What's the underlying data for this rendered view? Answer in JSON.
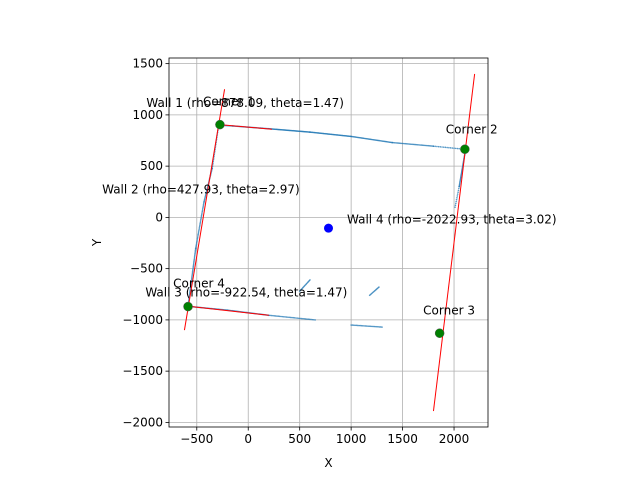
{
  "chart_data": {
    "type": "scatter",
    "title": "",
    "xlabel": "X",
    "ylabel": "Y",
    "xlim": [
      -770,
      2330
    ],
    "ylim": [
      -2045,
      1555
    ],
    "grid": true,
    "aspect": "equal",
    "xticks": [
      -500,
      0,
      500,
      1000,
      1500,
      2000
    ],
    "yticks": [
      -2000,
      -1500,
      -1000,
      -500,
      0,
      500,
      1000,
      1500
    ],
    "xtick_labels": [
      "−500",
      "0",
      "500",
      "1000",
      "1500",
      "2000"
    ],
    "ytick_labels": [
      "−2000",
      "−1500",
      "−1000",
      "−500",
      "0",
      "500",
      "1000",
      "1500"
    ],
    "colors": {
      "scan_points": "#1f77b4",
      "wall_lines": "#ff0000",
      "corners": "#008000",
      "centroid": "#0000ff"
    },
    "scan_point_segments": [
      {
        "from": [
          -280,
          900
        ],
        "to": [
          -150,
          892
        ],
        "n": 14
      },
      {
        "from": [
          -150,
          892
        ],
        "to": [
          200,
          865
        ],
        "n": 40
      },
      {
        "from": [
          200,
          865
        ],
        "to": [
          600,
          832
        ],
        "n": 60
      },
      {
        "from": [
          600,
          832
        ],
        "to": [
          1000,
          790
        ],
        "n": 55
      },
      {
        "from": [
          1000,
          790
        ],
        "to": [
          1400,
          730
        ],
        "n": 45
      },
      {
        "from": [
          1400,
          730
        ],
        "to": [
          1800,
          695
        ],
        "n": 35
      },
      {
        "from": [
          1800,
          695
        ],
        "to": [
          2050,
          670
        ],
        "n": 16
      },
      {
        "from": [
          -290,
          880
        ],
        "to": [
          -350,
          480
        ],
        "n": 25
      },
      {
        "from": [
          -350,
          480
        ],
        "to": [
          -430,
          150
        ],
        "n": 30
      },
      {
        "from": [
          -430,
          150
        ],
        "to": [
          -510,
          -300
        ],
        "n": 35
      },
      {
        "from": [
          -510,
          -300
        ],
        "to": [
          -580,
          -830
        ],
        "n": 45
      },
      {
        "from": [
          -560,
          -870
        ],
        "to": [
          -200,
          -905
        ],
        "n": 40
      },
      {
        "from": [
          -200,
          -905
        ],
        "to": [
          200,
          -955
        ],
        "n": 45
      },
      {
        "from": [
          200,
          -955
        ],
        "to": [
          650,
          -1000
        ],
        "n": 35
      },
      {
        "from": [
          1000,
          -1050
        ],
        "to": [
          1300,
          -1070
        ],
        "n": 25
      },
      {
        "from": [
          2110,
          650
        ],
        "to": [
          2050,
          300
        ],
        "n": 40
      },
      {
        "from": [
          2050,
          300
        ],
        "to": [
          2010,
          100
        ],
        "n": 12
      },
      {
        "from": [
          500,
          -720
        ],
        "to": [
          600,
          -610
        ],
        "n": 15
      },
      {
        "from": [
          1180,
          -760
        ],
        "to": [
          1270,
          -680
        ],
        "n": 12
      }
    ],
    "walls": [
      {
        "label": "Wall 1 (rho=878.09, theta=1.47)",
        "line": [
          [
            -280,
            905
          ],
          [
            230,
            860
          ]
        ],
        "label_at": [
          -990,
          1075
        ]
      },
      {
        "label": "Wall 2 (rho=427.93, theta=2.97)",
        "line": [
          [
            -620,
            -1100
          ],
          [
            -230,
            1250
          ]
        ],
        "label_at": [
          -1420,
          235
        ]
      },
      {
        "label": "Wall 3 (rho=-922.54, theta=1.47)",
        "line": [
          [
            -570,
            -868
          ],
          [
            200,
            -955
          ]
        ],
        "label_at": [
          -1000,
          -770
        ]
      },
      {
        "label": "Wall 4 (rho=-2022.93, theta=3.02)",
        "line": [
          [
            1800,
            -1890
          ],
          [
            2200,
            1400
          ]
        ],
        "label_at": [
          960,
          -60
        ]
      }
    ],
    "corners": [
      {
        "label": "Corner 1",
        "x": -275,
        "y": 905,
        "label_at": [
          -440,
          1090
        ]
      },
      {
        "label": "Corner 2",
        "x": 2105,
        "y": 665,
        "label_at": [
          1920,
          820
        ]
      },
      {
        "label": "Corner 3",
        "x": 1860,
        "y": -1130,
        "label_at": [
          1700,
          -945
        ]
      },
      {
        "label": "Corner 4",
        "x": -585,
        "y": -870,
        "label_at": [
          -730,
          -685
        ]
      }
    ],
    "centroid": {
      "x": 780,
      "y": -105
    }
  }
}
